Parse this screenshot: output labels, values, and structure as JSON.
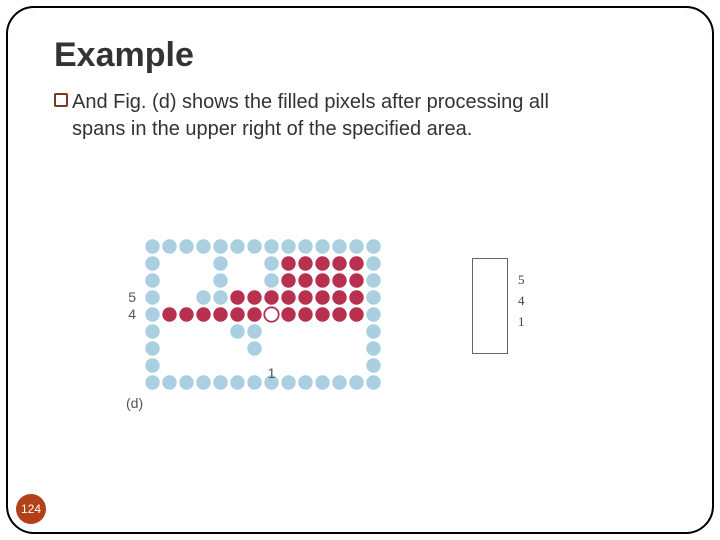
{
  "title": "Example",
  "body": "And Fig. (d) shows the filled pixels after processing all spans in the upper right of the specified area.",
  "page_number": "124",
  "figure": {
    "caption": "(d)",
    "cols": 14,
    "rows": 9,
    "cell": 17,
    "radius": 7.2,
    "colors": {
      "boundary": "#a9cfe0",
      "filled": "#b7304f",
      "seed_fill": "#ffffff",
      "seed_stroke": "#b7304f",
      "label": "#555555"
    },
    "row_labels": [
      {
        "row": 3,
        "text": "5"
      },
      {
        "row": 4,
        "text": "4"
      }
    ],
    "col_labels": [
      {
        "col": 7,
        "text": "1"
      }
    ],
    "boundary_cells": [
      [
        0,
        0
      ],
      [
        0,
        1
      ],
      [
        0,
        2
      ],
      [
        0,
        3
      ],
      [
        0,
        4
      ],
      [
        0,
        5
      ],
      [
        0,
        6
      ],
      [
        0,
        7
      ],
      [
        0,
        8
      ],
      [
        0,
        9
      ],
      [
        0,
        10
      ],
      [
        0,
        11
      ],
      [
        0,
        12
      ],
      [
        0,
        13
      ],
      [
        8,
        0
      ],
      [
        8,
        1
      ],
      [
        8,
        2
      ],
      [
        8,
        3
      ],
      [
        8,
        4
      ],
      [
        8,
        5
      ],
      [
        8,
        6
      ],
      [
        8,
        7
      ],
      [
        8,
        8
      ],
      [
        8,
        9
      ],
      [
        8,
        10
      ],
      [
        8,
        11
      ],
      [
        8,
        12
      ],
      [
        8,
        13
      ],
      [
        1,
        0
      ],
      [
        2,
        0
      ],
      [
        3,
        0
      ],
      [
        4,
        0
      ],
      [
        5,
        0
      ],
      [
        6,
        0
      ],
      [
        7,
        0
      ],
      [
        1,
        13
      ],
      [
        2,
        13
      ],
      [
        3,
        13
      ],
      [
        4,
        13
      ],
      [
        5,
        13
      ],
      [
        6,
        13
      ],
      [
        7,
        13
      ],
      [
        1,
        4
      ],
      [
        2,
        4
      ],
      [
        3,
        4
      ],
      [
        3,
        3
      ],
      [
        1,
        7
      ],
      [
        2,
        7
      ],
      [
        5,
        5
      ],
      [
        5,
        6
      ],
      [
        6,
        6
      ]
    ],
    "filled_cells": [
      [
        1,
        8
      ],
      [
        1,
        9
      ],
      [
        1,
        10
      ],
      [
        1,
        11
      ],
      [
        1,
        12
      ],
      [
        2,
        8
      ],
      [
        2,
        9
      ],
      [
        2,
        10
      ],
      [
        2,
        11
      ],
      [
        2,
        12
      ],
      [
        3,
        5
      ],
      [
        3,
        6
      ],
      [
        3,
        7
      ],
      [
        3,
        8
      ],
      [
        3,
        9
      ],
      [
        3,
        10
      ],
      [
        3,
        11
      ],
      [
        3,
        12
      ],
      [
        4,
        1
      ],
      [
        4,
        2
      ],
      [
        4,
        3
      ],
      [
        4,
        4
      ],
      [
        4,
        5
      ],
      [
        4,
        6
      ],
      [
        4,
        8
      ],
      [
        4,
        9
      ],
      [
        4,
        10
      ],
      [
        4,
        11
      ],
      [
        4,
        12
      ]
    ],
    "seed_cell": [
      4,
      7
    ]
  },
  "stack": {
    "items": [
      "5",
      "4",
      "1"
    ]
  }
}
